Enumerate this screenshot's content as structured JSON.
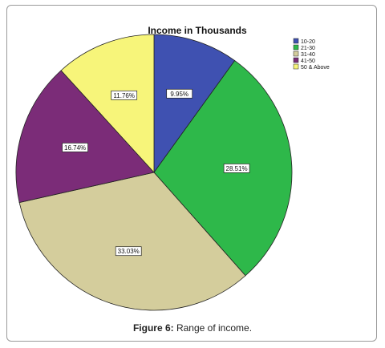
{
  "chart_data": {
    "type": "pie",
    "title": "Income in Thousands",
    "slices": [
      {
        "label": "10-20",
        "value": 9.95,
        "display": "9.95%",
        "color": "#3f51b1"
      },
      {
        "label": "21-30",
        "value": 28.51,
        "display": "28.51%",
        "color": "#2eb84a"
      },
      {
        "label": "31-40",
        "value": 33.03,
        "display": "33.03%",
        "color": "#d4cd9c"
      },
      {
        "label": "41-50",
        "value": 16.74,
        "display": "16.74%",
        "color": "#7b2c78"
      },
      {
        "label": "50 & Above",
        "value": 11.76,
        "display": "11.76%",
        "color": "#f7f57a"
      }
    ],
    "legend_position": "top-right"
  },
  "caption": {
    "label": "Figure 6:",
    "text": "Range of income."
  }
}
